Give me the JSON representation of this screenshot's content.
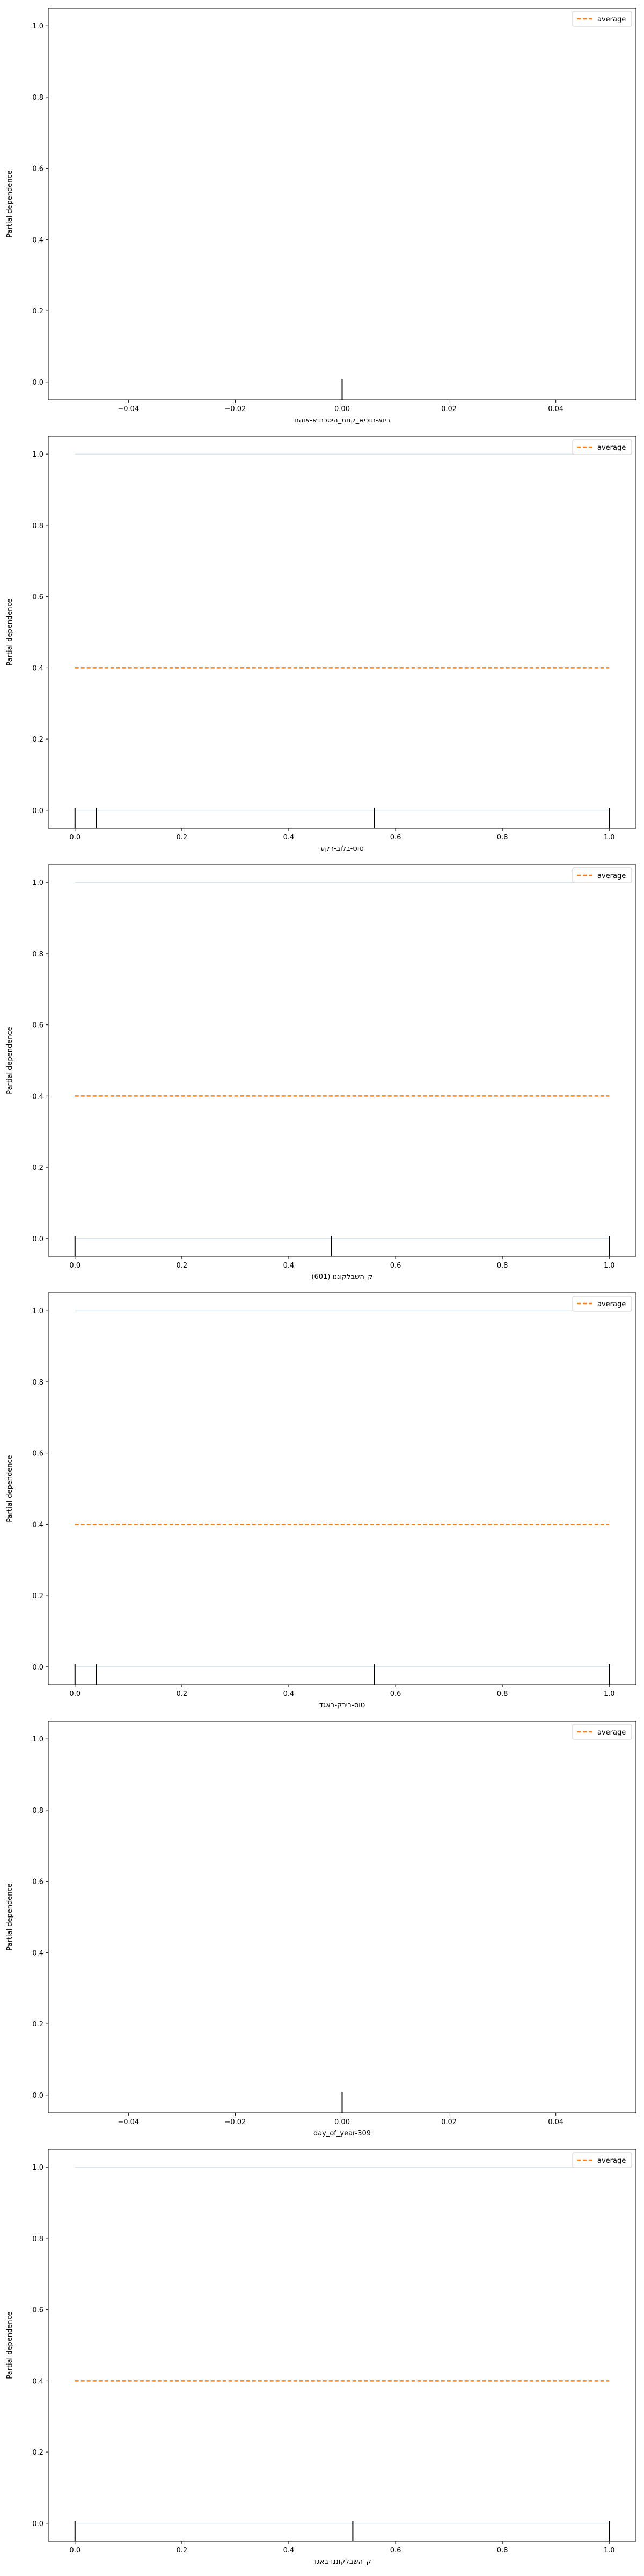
{
  "chart_data": [
    {
      "type": "line",
      "xlabel": "ריוא-תוכיא_קתמ_היסכתוא-אוהם",
      "ylabel": "Partial dependence",
      "xlim": [
        -0.055,
        0.055
      ],
      "ylim": [
        -0.05,
        1.05
      ],
      "xticks": [
        -0.04,
        -0.02,
        0.0,
        0.02,
        0.04
      ],
      "xtick_labels": [
        "−0.04",
        "−0.02",
        "0.00",
        "0.02",
        "0.04"
      ],
      "yticks": [
        0.0,
        0.2,
        0.4,
        0.6,
        0.8,
        1.0
      ],
      "ytick_labels": [
        "0.0",
        "0.2",
        "0.4",
        "0.6",
        "0.8",
        "1.0"
      ],
      "legend": {
        "label": "average",
        "position": "top-right",
        "color": "#ff7f0e"
      },
      "series": [],
      "rug": [
        0.0
      ],
      "grid": false
    },
    {
      "type": "line",
      "xlabel": "טוס-בלוב-רקע",
      "ylabel": "Partial dependence",
      "xlim": [
        -0.05,
        1.05
      ],
      "ylim": [
        -0.05,
        1.05
      ],
      "xticks": [
        0.0,
        0.2,
        0.4,
        0.6,
        0.8,
        1.0
      ],
      "xtick_labels": [
        "0.0",
        "0.2",
        "0.4",
        "0.6",
        "0.8",
        "1.0"
      ],
      "yticks": [
        0.0,
        0.2,
        0.4,
        0.6,
        0.8,
        1.0
      ],
      "ytick_labels": [
        "0.0",
        "0.2",
        "0.4",
        "0.6",
        "0.8",
        "1.0"
      ],
      "legend": {
        "label": "average",
        "position": "top-right",
        "color": "#ff7f0e"
      },
      "series": [
        {
          "name": "average",
          "style": "dashed",
          "color": "#ff7f0e",
          "x": [
            0.0,
            1.0
          ],
          "y": [
            0.4,
            0.4
          ]
        }
      ],
      "ice_lines": {
        "color": "#1f77b4",
        "y_values": [
          0.0,
          1.0
        ]
      },
      "rug": [
        0.0,
        0.04,
        0.56,
        1.0
      ],
      "grid": false
    },
    {
      "type": "line",
      "xlabel": "ק_השבלקוננו (601)",
      "ylabel": "Partial dependence",
      "xlim": [
        -0.05,
        1.05
      ],
      "ylim": [
        -0.05,
        1.05
      ],
      "xticks": [
        0.0,
        0.2,
        0.4,
        0.6,
        0.8,
        1.0
      ],
      "xtick_labels": [
        "0.0",
        "0.2",
        "0.4",
        "0.6",
        "0.8",
        "1.0"
      ],
      "yticks": [
        0.0,
        0.2,
        0.4,
        0.6,
        0.8,
        1.0
      ],
      "ytick_labels": [
        "0.0",
        "0.2",
        "0.4",
        "0.6",
        "0.8",
        "1.0"
      ],
      "legend": {
        "label": "average",
        "position": "top-right",
        "color": "#ff7f0e"
      },
      "series": [
        {
          "name": "average",
          "style": "dashed",
          "color": "#ff7f0e",
          "x": [
            0.0,
            1.0
          ],
          "y": [
            0.4,
            0.4
          ]
        }
      ],
      "ice_lines": {
        "color": "#1f77b4",
        "y_values": [
          0.0,
          1.0
        ]
      },
      "rug": [
        0.0,
        0.48,
        1.0
      ],
      "grid": false
    },
    {
      "type": "line",
      "xlabel": "טוס-בירק-באגד",
      "ylabel": "Partial dependence",
      "xlim": [
        -0.05,
        1.05
      ],
      "ylim": [
        -0.05,
        1.05
      ],
      "xticks": [
        0.0,
        0.2,
        0.4,
        0.6,
        0.8,
        1.0
      ],
      "xtick_labels": [
        "0.0",
        "0.2",
        "0.4",
        "0.6",
        "0.8",
        "1.0"
      ],
      "yticks": [
        0.0,
        0.2,
        0.4,
        0.6,
        0.8,
        1.0
      ],
      "ytick_labels": [
        "0.0",
        "0.2",
        "0.4",
        "0.6",
        "0.8",
        "1.0"
      ],
      "legend": {
        "label": "average",
        "position": "top-right",
        "color": "#ff7f0e"
      },
      "series": [
        {
          "name": "average",
          "style": "dashed",
          "color": "#ff7f0e",
          "x": [
            0.0,
            1.0
          ],
          "y": [
            0.4,
            0.4
          ]
        }
      ],
      "ice_lines": {
        "color": "#1f77b4",
        "y_values": [
          0.0,
          1.0
        ]
      },
      "rug": [
        0.0,
        0.04,
        0.56,
        1.0
      ],
      "grid": false
    },
    {
      "type": "line",
      "xlabel": "day_of_year-309",
      "ylabel": "Partial dependence",
      "xlim": [
        -0.055,
        0.055
      ],
      "ylim": [
        -0.05,
        1.05
      ],
      "xticks": [
        -0.04,
        -0.02,
        0.0,
        0.02,
        0.04
      ],
      "xtick_labels": [
        "−0.04",
        "−0.02",
        "0.00",
        "0.02",
        "0.04"
      ],
      "yticks": [
        0.0,
        0.2,
        0.4,
        0.6,
        0.8,
        1.0
      ],
      "ytick_labels": [
        "0.0",
        "0.2",
        "0.4",
        "0.6",
        "0.8",
        "1.0"
      ],
      "legend": {
        "label": "average",
        "position": "top-right",
        "color": "#ff7f0e"
      },
      "series": [],
      "rug": [
        0.0
      ],
      "grid": false
    },
    {
      "type": "line",
      "xlabel": "ק_השבלקוננו-באגד",
      "ylabel": "Partial dependence",
      "xlim": [
        -0.05,
        1.05
      ],
      "ylim": [
        -0.05,
        1.05
      ],
      "xticks": [
        0.0,
        0.2,
        0.4,
        0.6,
        0.8,
        1.0
      ],
      "xtick_labels": [
        "0.0",
        "0.2",
        "0.4",
        "0.6",
        "0.8",
        "1.0"
      ],
      "yticks": [
        0.0,
        0.2,
        0.4,
        0.6,
        0.8,
        1.0
      ],
      "ytick_labels": [
        "0.0",
        "0.2",
        "0.4",
        "0.6",
        "0.8",
        "1.0"
      ],
      "legend": {
        "label": "average",
        "position": "top-right",
        "color": "#ff7f0e"
      },
      "series": [
        {
          "name": "average",
          "style": "dashed",
          "color": "#ff7f0e",
          "x": [
            0.0,
            1.0
          ],
          "y": [
            0.4,
            0.4
          ]
        }
      ],
      "ice_lines": {
        "color": "#1f77b4",
        "y_values": [
          0.0,
          1.0
        ]
      },
      "rug": [
        0.0,
        0.52,
        1.0
      ],
      "grid": false
    }
  ]
}
